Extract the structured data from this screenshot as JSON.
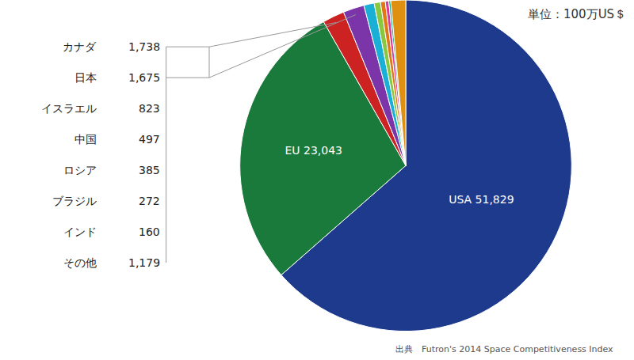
{
  "chart_data": {
    "type": "pie",
    "categories": [
      "USA",
      "EU",
      "カナダ",
      "日本",
      "イスラエル",
      "中国",
      "ロシア",
      "ブラジル",
      "インド",
      "その他"
    ],
    "values": [
      51829,
      23043,
      1738,
      1675,
      823,
      497,
      385,
      272,
      160,
      1179
    ],
    "value_labels": [
      "51,829",
      "23,043",
      "1,738",
      "1,675",
      "823",
      "497",
      "385",
      "272",
      "160",
      "1,179"
    ],
    "colors": [
      "#1e3a8c",
      "#1a7a3c",
      "#cc2222",
      "#7b35a8",
      "#1ab0d5",
      "#88c840",
      "#e07818",
      "#e03898",
      "#10b898",
      "#e09010"
    ],
    "data_labels": true,
    "annotations": [
      "単位：100万US＄",
      "出典　Futron's 2014 Space Competitiveness Index"
    ]
  }
}
